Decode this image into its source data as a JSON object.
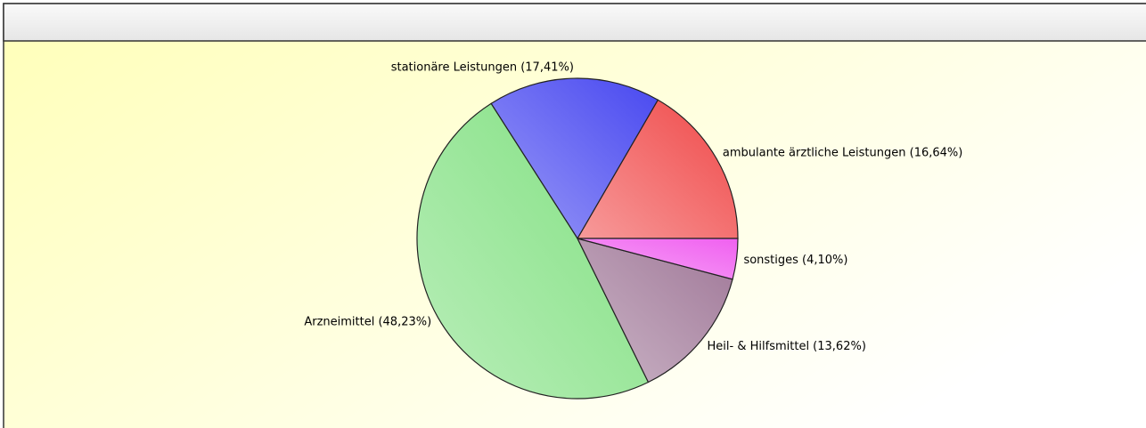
{
  "chart_data": {
    "type": "pie",
    "categories": [
      "ambulante ärztliche Leistungen (16,64%)",
      "stationäre Leistungen (17,41%)",
      "Arzneimittel (48,23%)",
      "Heil- & Hilfsmittel (13,62%)",
      "sonstiges (4,10%)"
    ],
    "values": [
      16.64,
      17.41,
      48.23,
      13.62,
      4.1
    ],
    "colors": [
      "#f04848",
      "#4848f0",
      "#80e080",
      "#a07898",
      "#f060f0"
    ]
  }
}
